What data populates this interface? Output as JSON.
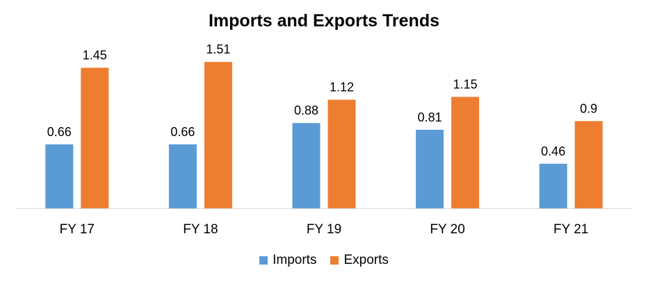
{
  "chart_data": {
    "type": "bar",
    "title": "Imports and Exports Trends",
    "categories": [
      "FY 17",
      "FY 18",
      "FY 19",
      "FY 20",
      "FY 21"
    ],
    "series": [
      {
        "name": "Imports",
        "color": "#5B9BD5",
        "values": [
          0.66,
          0.66,
          0.88,
          0.81,
          0.46
        ],
        "labels": [
          "0.66",
          "0.66",
          "0.88",
          "0.81",
          "0.46"
        ]
      },
      {
        "name": "Exports",
        "color": "#ED7D31",
        "values": [
          1.45,
          1.51,
          1.12,
          1.15,
          0.9
        ],
        "labels": [
          "1.45",
          "1.51",
          "1.12",
          "1.15",
          "0.9"
        ]
      }
    ],
    "xlabel": "",
    "ylabel": "",
    "ylim": [
      0,
      1.6
    ],
    "grid": false,
    "legend_position": "bottom"
  }
}
